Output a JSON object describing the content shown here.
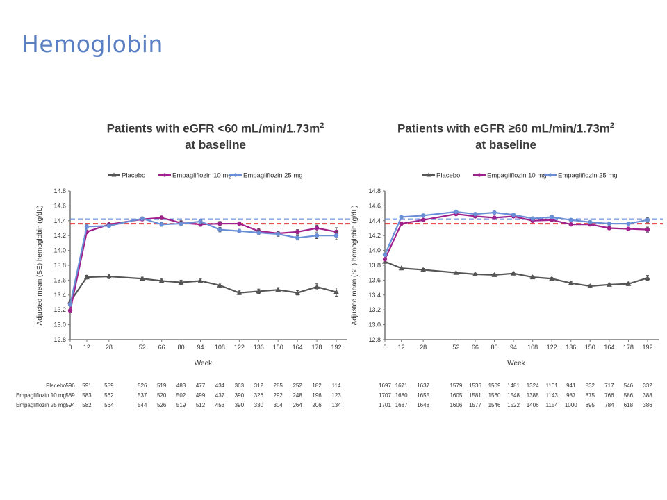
{
  "slide": {
    "title": "Hemoglobin"
  },
  "chart_data": [
    {
      "type": "line",
      "title": "Patients with eGFR <60 mL/min/1.73m",
      "title_sup": "2",
      "title_line2": "at baseline",
      "xlabel": "Week",
      "ylabel": "Adjusted mean (SE) hemoglobin (g/dL)",
      "ylim": [
        12.8,
        14.8
      ],
      "yticks": [
        "12.8",
        "13.0",
        "13.2",
        "13.4",
        "13.6",
        "13.8",
        "14.0",
        "14.2",
        "14.4",
        "14.6",
        "14.8"
      ],
      "x": [
        0,
        12,
        28,
        52,
        66,
        80,
        94,
        108,
        122,
        136,
        150,
        164,
        178,
        192
      ],
      "legend_position": "top",
      "series": [
        {
          "name": "Placebo",
          "color": "#555555",
          "marker": "triangle",
          "values": [
            13.31,
            13.64,
            13.65,
            13.62,
            13.59,
            13.57,
            13.59,
            13.53,
            13.43,
            13.45,
            13.47,
            13.43,
            13.51,
            13.44
          ]
        },
        {
          "name": "Empagliflozin 10 mg",
          "color": "#a0218c",
          "marker": "circle",
          "values": [
            13.19,
            14.25,
            14.35,
            14.42,
            14.44,
            14.37,
            14.35,
            14.36,
            14.36,
            14.26,
            14.23,
            14.25,
            14.3,
            14.25
          ]
        },
        {
          "name": "Empagliflozin 25 mg",
          "color": "#6a8fd6",
          "marker": "circle",
          "values": [
            13.27,
            14.32,
            14.33,
            14.43,
            14.35,
            14.36,
            14.39,
            14.28,
            14.26,
            14.24,
            14.22,
            14.17,
            14.2,
            14.2
          ]
        }
      ],
      "reference_lines": [
        {
          "name": "reference-blue",
          "value": 14.42,
          "color": "#5a7ecf"
        },
        {
          "name": "reference-red",
          "value": 14.36,
          "color": "#e03b3b"
        }
      ],
      "n_at_risk": [
        {
          "label": "Placebo",
          "values": [
            "596",
            "591",
            "559",
            "526",
            "519",
            "483",
            "477",
            "434",
            "363",
            "312",
            "285",
            "252",
            "182",
            "114"
          ]
        },
        {
          "label": "Empagliflozin 10 mg",
          "values": [
            "589",
            "583",
            "562",
            "537",
            "520",
            "502",
            "499",
            "437",
            "390",
            "326",
            "292",
            "248",
            "196",
            "123"
          ]
        },
        {
          "label": "Empagliflozin 25 mg",
          "values": [
            "594",
            "582",
            "564",
            "544",
            "526",
            "519",
            "512",
            "453",
            "390",
            "330",
            "304",
            "264",
            "206",
            "134"
          ]
        }
      ]
    },
    {
      "type": "line",
      "title": "Patients with eGFR ≥60 mL/min/1.73m",
      "title_sup": "2",
      "title_line2": "at baseline",
      "xlabel": "Week",
      "ylabel": "Adjusted mean (SE) hemoglobin (g/dL)",
      "ylim": [
        12.8,
        14.8
      ],
      "yticks": [
        "12.8",
        "13.0",
        "13.2",
        "13.4",
        "13.6",
        "13.8",
        "14.0",
        "14.2",
        "14.4",
        "14.6",
        "14.8"
      ],
      "x": [
        0,
        12,
        28,
        52,
        66,
        80,
        94,
        108,
        122,
        136,
        150,
        164,
        178,
        192
      ],
      "legend_position": "top",
      "series": [
        {
          "name": "Placebo",
          "color": "#555555",
          "marker": "triangle",
          "values": [
            13.85,
            13.76,
            13.74,
            13.7,
            13.68,
            13.67,
            13.69,
            13.64,
            13.62,
            13.56,
            13.52,
            13.54,
            13.55,
            13.63
          ]
        },
        {
          "name": "Empagliflozin 10 mg",
          "color": "#a0218c",
          "marker": "circle",
          "values": [
            13.88,
            14.36,
            14.41,
            14.49,
            14.46,
            14.44,
            14.46,
            14.4,
            14.41,
            14.35,
            14.35,
            14.3,
            14.29,
            14.28
          ]
        },
        {
          "name": "Empagliflozin 25 mg",
          "color": "#6a8fd6",
          "marker": "circle",
          "values": [
            13.94,
            14.45,
            14.47,
            14.52,
            14.49,
            14.51,
            14.48,
            14.43,
            14.45,
            14.41,
            14.38,
            14.36,
            14.36,
            14.41
          ]
        }
      ],
      "reference_lines": [
        {
          "name": "reference-blue",
          "value": 14.42,
          "color": "#5a7ecf"
        },
        {
          "name": "reference-red",
          "value": 14.36,
          "color": "#e03b3b"
        }
      ],
      "n_at_risk": [
        {
          "label": "Placebo",
          "values": [
            "1697",
            "1671",
            "1637",
            "1579",
            "1536",
            "1509",
            "1481",
            "1324",
            "1101",
            "941",
            "832",
            "717",
            "546",
            "332"
          ]
        },
        {
          "label": "Empagliflozin 10 mg",
          "values": [
            "1707",
            "1680",
            "1655",
            "1605",
            "1581",
            "1560",
            "1548",
            "1388",
            "1143",
            "987",
            "875",
            "766",
            "586",
            "388"
          ]
        },
        {
          "label": "Empagliflozin 25 mg",
          "values": [
            "1701",
            "1687",
            "1648",
            "1606",
            "1577",
            "1546",
            "1522",
            "1406",
            "1154",
            "1000",
            "895",
            "784",
            "618",
            "386"
          ]
        }
      ]
    }
  ]
}
